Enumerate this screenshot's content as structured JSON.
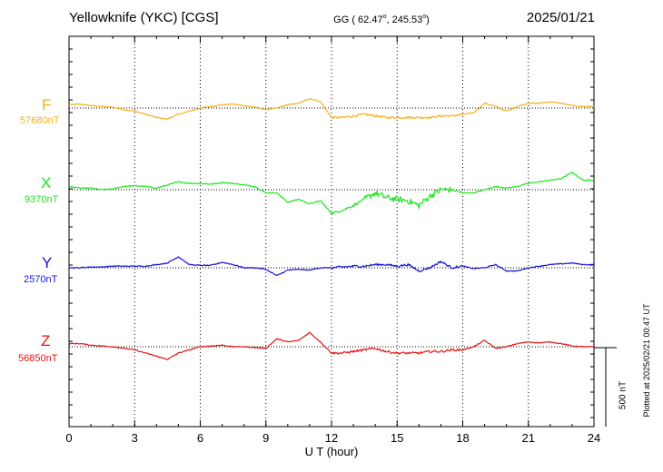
{
  "header": {
    "station": "Yellowknife (YKC)  [CGS]",
    "coords_prefix": "GG ( 62.47",
    "coords_mid": ", 245.53",
    "coords_suffix": ")",
    "degree_mark": "o",
    "date": "2025/01/21"
  },
  "footer": {
    "plotted": "Plotted at 2025/02/21 00:47 UT",
    "scale": "500 nT"
  },
  "chart_data": {
    "type": "line",
    "xlabel": "U T (hour)",
    "xlim": [
      0,
      24
    ],
    "x_ticks": [
      "0",
      "3",
      "6",
      "9",
      "12",
      "15",
      "18",
      "21",
      "24"
    ],
    "scale_bar_nT": 500,
    "grid": "dotted vertical lines every 3 h, dotted baseline per component",
    "x": [
      0,
      0.5,
      1,
      1.5,
      2,
      2.5,
      3,
      3.5,
      4,
      4.5,
      5,
      5.5,
      6,
      6.5,
      7,
      7.5,
      8,
      8.5,
      9,
      9.5,
      10,
      10.5,
      11,
      11.5,
      12,
      12.5,
      13,
      13.5,
      14,
      14.5,
      15,
      15.5,
      16,
      16.5,
      17,
      17.5,
      18,
      18.5,
      19,
      19.5,
      20,
      20.5,
      21,
      21.5,
      22,
      22.5,
      23,
      23.5,
      24
    ],
    "series": [
      {
        "name": "F",
        "baseline": "57680nT",
        "color": "#f4b11d",
        "offsets_nT": [
          20,
          25,
          15,
          10,
          5,
          -10,
          -20,
          -40,
          -60,
          -70,
          -40,
          -20,
          0,
          10,
          20,
          25,
          15,
          5,
          -10,
          0,
          20,
          30,
          60,
          40,
          -60,
          -60,
          -50,
          -40,
          -50,
          -60,
          -60,
          -60,
          -60,
          -60,
          -50,
          -50,
          -40,
          -30,
          30,
          10,
          -20,
          10,
          30,
          30,
          40,
          30,
          15,
          10,
          10
        ]
      },
      {
        "name": "X",
        "baseline": "9370nT",
        "color": "#19e619",
        "offsets_nT": [
          20,
          10,
          10,
          0,
          5,
          20,
          25,
          20,
          10,
          30,
          50,
          40,
          40,
          35,
          45,
          40,
          30,
          20,
          -20,
          -20,
          -80,
          -60,
          -90,
          -70,
          -150,
          -130,
          -100,
          -60,
          -20,
          -50,
          -60,
          -70,
          -100,
          -40,
          0,
          0,
          -20,
          -20,
          0,
          20,
          10,
          20,
          40,
          50,
          60,
          70,
          110,
          60,
          60
        ]
      },
      {
        "name": "Y",
        "baseline": "2570nT",
        "color": "#1414d6",
        "offsets_nT": [
          0,
          0,
          5,
          5,
          10,
          10,
          10,
          10,
          20,
          30,
          70,
          20,
          15,
          15,
          35,
          20,
          0,
          0,
          -10,
          -50,
          -15,
          -10,
          -15,
          0,
          0,
          5,
          10,
          10,
          20,
          20,
          10,
          20,
          -20,
          0,
          40,
          0,
          10,
          -5,
          0,
          20,
          -20,
          -20,
          0,
          10,
          20,
          25,
          30,
          20,
          20
        ]
      },
      {
        "name": "Z",
        "baseline": "56850nT",
        "color": "#e51414",
        "offsets_nT": [
          20,
          20,
          10,
          5,
          0,
          -10,
          -20,
          -40,
          -60,
          -80,
          -40,
          -20,
          0,
          5,
          10,
          0,
          0,
          -5,
          -10,
          50,
          30,
          40,
          90,
          30,
          -40,
          -40,
          -30,
          -20,
          -10,
          -30,
          -40,
          -40,
          -40,
          -30,
          -30,
          -20,
          -20,
          0,
          40,
          -10,
          0,
          20,
          30,
          25,
          30,
          20,
          5,
          0,
          0
        ]
      }
    ]
  }
}
